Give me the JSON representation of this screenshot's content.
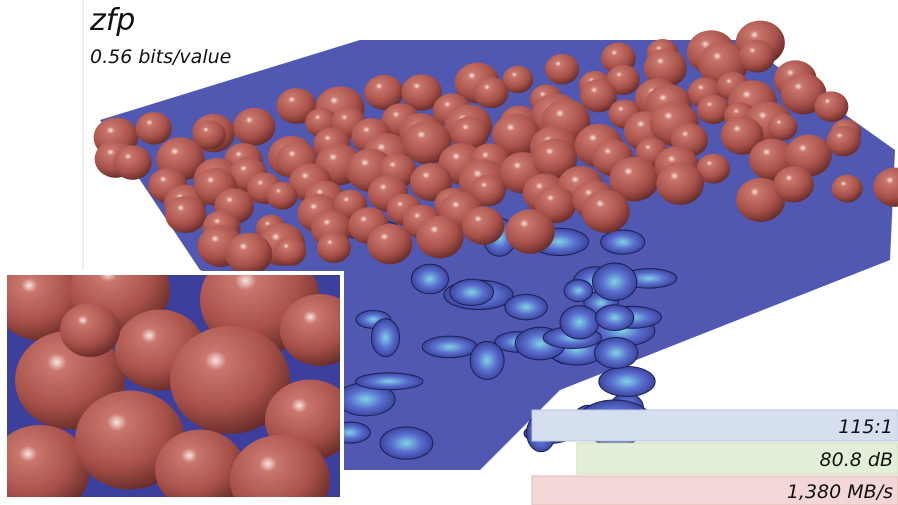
{
  "header": {
    "title": "zfp",
    "subtitle": "0.56 bits/value"
  },
  "metrics": [
    {
      "label": "115:1"
    },
    {
      "label": "80.8 dB"
    },
    {
      "label": "1,380 MB/s"
    }
  ]
}
